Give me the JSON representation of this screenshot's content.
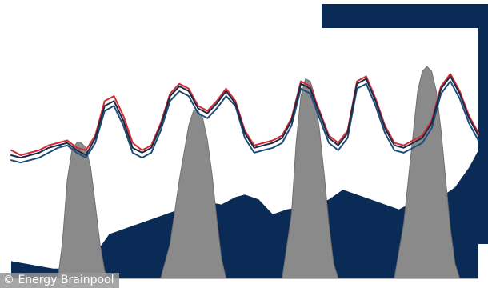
{
  "credit": "© Energy Brainpool",
  "colors": {
    "background": "#ffffff",
    "frame_navy": "#0b2b57",
    "base_area": "#0b2b57",
    "peak_area": "#8a8a8a",
    "peak_area_stroke": "#6f6f6f",
    "red_line": "#d42a33",
    "blue_line": "#1f4d7a",
    "dark_line": "#1c2a44"
  },
  "chart_data": {
    "type": "area",
    "title": "",
    "xlabel": "",
    "ylabel": "",
    "xlim": [
      0,
      100
    ],
    "ylim": [
      0,
      100
    ],
    "grid": false,
    "legend": "none",
    "note_series_unnamed": true,
    "series": [
      {
        "kind": "area",
        "color": "#0b2b57",
        "x": [
          0,
          3,
          6,
          9,
          12,
          15,
          18,
          21,
          24,
          27,
          30,
          33,
          36,
          39,
          42,
          45,
          48,
          50,
          53,
          56,
          59,
          62,
          65,
          68,
          71,
          74,
          77,
          80,
          83,
          86,
          89,
          92,
          95,
          98,
          100
        ],
        "values": [
          7,
          6,
          5,
          4,
          4,
          6,
          10,
          18,
          20,
          22,
          24,
          26,
          28,
          30,
          31,
          30,
          33,
          34,
          32,
          26,
          28,
          29,
          30,
          32,
          36,
          34,
          32,
          30,
          28,
          31,
          29,
          33,
          37,
          45,
          52
        ]
      },
      {
        "kind": "area",
        "color": "#8a8a8a",
        "x": [
          0,
          8,
          10,
          11,
          12,
          13,
          14,
          15,
          16,
          17,
          18,
          19,
          20,
          21,
          32,
          34,
          36,
          38,
          39,
          40,
          41,
          42,
          43,
          44,
          45,
          46,
          47,
          58,
          60,
          61,
          62,
          63,
          64,
          65,
          66,
          67,
          68,
          69,
          70,
          71,
          82,
          84,
          86,
          87,
          88,
          89,
          90,
          91,
          92,
          93,
          94,
          95,
          96,
          97,
          98,
          100
        ],
        "values": [
          0,
          0,
          0,
          15,
          40,
          52,
          55,
          55,
          53,
          45,
          30,
          14,
          3,
          0,
          0,
          14,
          40,
          62,
          68,
          68,
          65,
          56,
          42,
          24,
          8,
          0,
          0,
          0,
          26,
          55,
          74,
          81,
          80,
          74,
          60,
          42,
          22,
          6,
          0,
          0,
          0,
          22,
          58,
          76,
          84,
          86,
          84,
          76,
          60,
          40,
          20,
          6,
          0,
          0,
          0,
          0
        ]
      },
      {
        "kind": "line",
        "color": "#d42a33",
        "x": [
          0,
          2,
          4,
          6,
          8,
          10,
          12,
          14,
          16,
          18,
          20,
          22,
          24,
          26,
          28,
          30,
          32,
          34,
          36,
          38,
          40,
          42,
          44,
          46,
          48,
          50,
          52,
          54,
          56,
          58,
          60,
          62,
          64,
          66,
          68,
          70,
          72,
          74,
          76,
          78,
          80,
          82,
          84,
          86,
          88,
          90,
          92,
          94,
          96,
          98,
          100
        ],
        "values": [
          52,
          50,
          51,
          52,
          54,
          55,
          56,
          53,
          52,
          58,
          72,
          74,
          66,
          55,
          52,
          54,
          63,
          75,
          79,
          77,
          70,
          68,
          72,
          77,
          72,
          60,
          54,
          55,
          56,
          58,
          65,
          80,
          78,
          68,
          58,
          55,
          60,
          80,
          82,
          73,
          62,
          55,
          54,
          56,
          58,
          64,
          78,
          83,
          76,
          66,
          59
        ]
      },
      {
        "kind": "line",
        "color": "#1f4d7a",
        "x": [
          0,
          2,
          4,
          6,
          8,
          10,
          12,
          14,
          16,
          18,
          20,
          22,
          24,
          26,
          28,
          30,
          32,
          34,
          36,
          38,
          40,
          42,
          44,
          46,
          48,
          50,
          52,
          54,
          56,
          58,
          60,
          62,
          64,
          66,
          68,
          70,
          72,
          74,
          76,
          78,
          80,
          82,
          84,
          86,
          88,
          90,
          92,
          94,
          96,
          98,
          100
        ],
        "values": [
          48,
          47,
          48,
          49,
          51,
          53,
          54,
          51,
          49,
          55,
          68,
          70,
          62,
          51,
          49,
          51,
          60,
          72,
          76,
          74,
          67,
          65,
          69,
          74,
          70,
          57,
          51,
          52,
          53,
          55,
          62,
          77,
          75,
          65,
          55,
          52,
          57,
          77,
          79,
          70,
          59,
          52,
          51,
          53,
          55,
          61,
          75,
          80,
          73,
          63,
          56
        ]
      },
      {
        "kind": "line",
        "color": "#1c2a44",
        "x": [
          0,
          2,
          4,
          6,
          8,
          10,
          12,
          14,
          16,
          18,
          20,
          22,
          24,
          26,
          28,
          30,
          32,
          34,
          36,
          38,
          40,
          42,
          44,
          46,
          48,
          50,
          52,
          54,
          56,
          58,
          60,
          62,
          64,
          66,
          68,
          70,
          72,
          74,
          76,
          78,
          80,
          82,
          84,
          86,
          88,
          90,
          92,
          94,
          96,
          98,
          100
        ],
        "values": [
          50,
          49,
          50,
          51,
          53,
          54,
          55,
          52,
          50,
          57,
          70,
          72,
          64,
          53,
          51,
          53,
          62,
          74,
          78,
          76,
          69,
          67,
          71,
          76,
          71,
          59,
          53,
          54,
          55,
          57,
          64,
          79,
          77,
          67,
          57,
          54,
          59,
          79,
          81,
          72,
          61,
          54,
          53,
          55,
          57,
          63,
          77,
          82,
          75,
          65,
          58
        ]
      }
    ]
  }
}
